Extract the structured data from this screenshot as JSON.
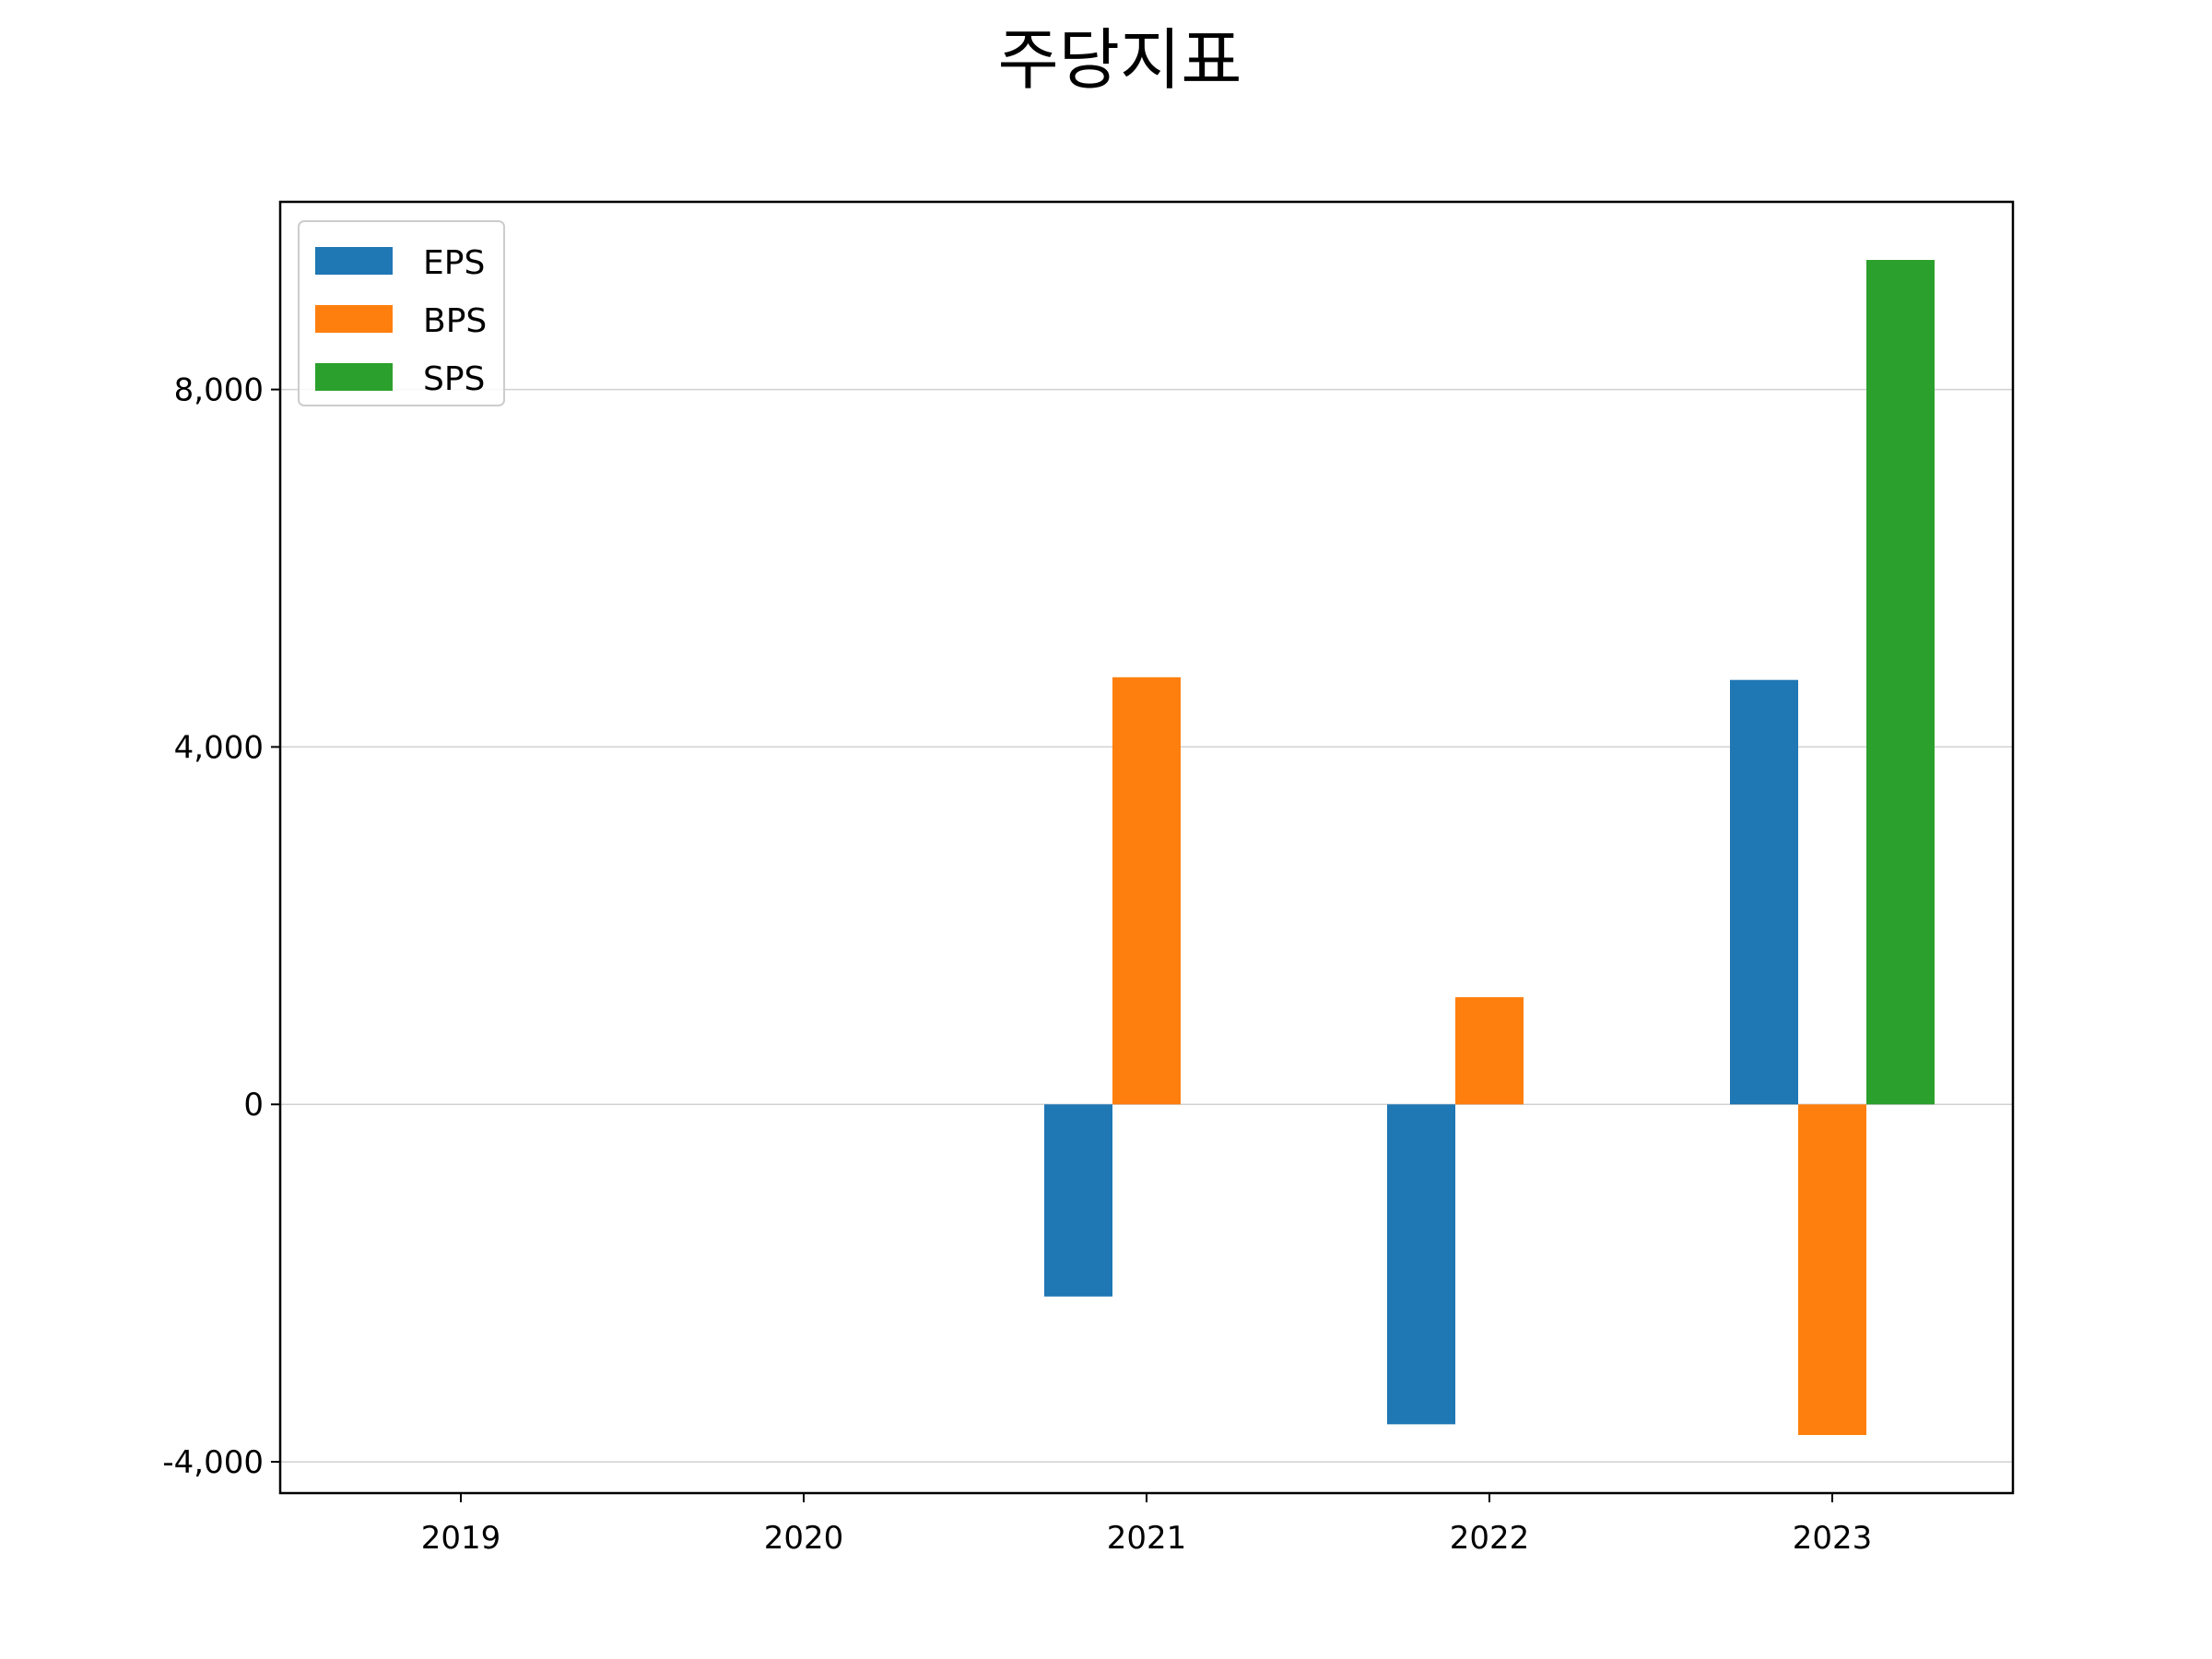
{
  "chart_data": {
    "type": "bar",
    "title": "주당지표",
    "xlabel": "",
    "ylabel": "",
    "categories": [
      "2019",
      "2020",
      "2021",
      "2022",
      "2023"
    ],
    "series": [
      {
        "name": "EPS",
        "color": "#1f77b4",
        "values": [
          null,
          null,
          -2150,
          -3580,
          4750
        ]
      },
      {
        "name": "BPS",
        "color": "#ff7f0e",
        "values": [
          null,
          null,
          4780,
          1200,
          -3700
        ]
      },
      {
        "name": "SPS",
        "color": "#2ca02c",
        "values": [
          null,
          null,
          null,
          null,
          9450
        ]
      }
    ],
    "yticks": [
      -4000,
      0,
      4000,
      8000
    ],
    "ytick_labels": [
      "-4,000",
      "0",
      "4,000",
      "8,000"
    ],
    "ylim": [
      -4350,
      10100
    ],
    "grid": "horizontal",
    "legend": "top-left"
  }
}
